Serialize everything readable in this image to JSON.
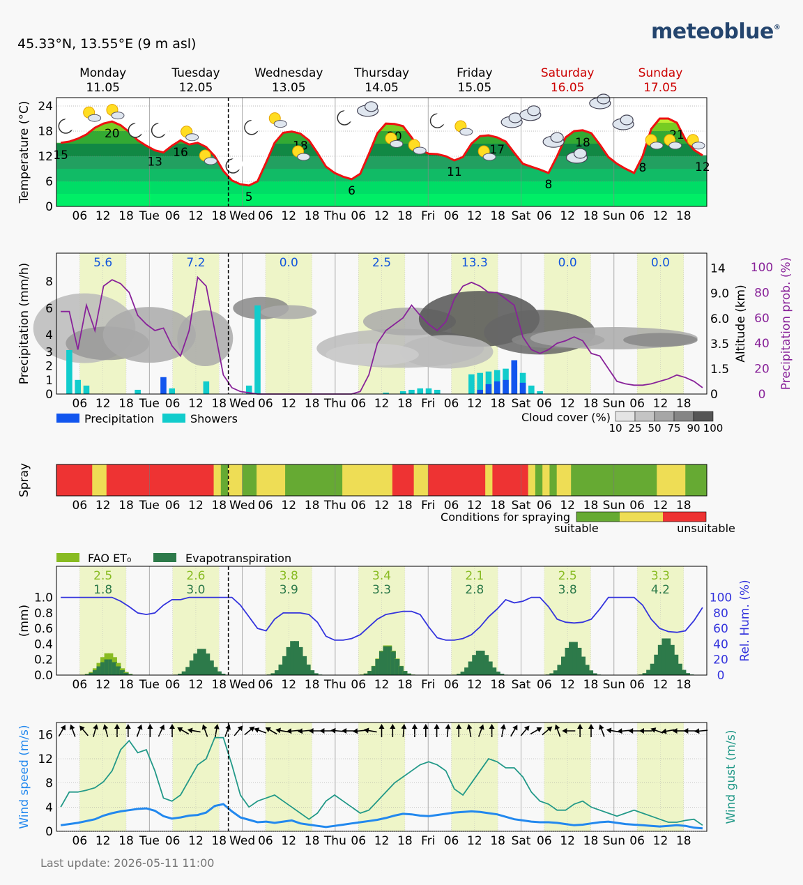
{
  "brand": "meteoblue",
  "location": "45.33°N, 13.55°E (9 m asl)",
  "last_update": "Last update: 2026-05-11 11:00",
  "days": [
    {
      "name": "Monday",
      "date": "11.05",
      "short": "",
      "weekend": false
    },
    {
      "name": "Tuesday",
      "date": "12.05",
      "short": "Tue",
      "weekend": false
    },
    {
      "name": "Wednesday",
      "date": "13.05",
      "short": "Wed",
      "weekend": false
    },
    {
      "name": "Thursday",
      "date": "14.05",
      "short": "Thu",
      "weekend": false
    },
    {
      "name": "Friday",
      "date": "15.05",
      "short": "Fri",
      "weekend": false
    },
    {
      "name": "Saturday",
      "date": "16.05",
      "short": "Sat",
      "weekend": true
    },
    {
      "name": "Sunday",
      "date": "17.05",
      "short": "Sun",
      "weekend": true
    }
  ],
  "hour_ticks": [
    "06",
    "12",
    "18"
  ],
  "colors": {
    "weekend": "#cc0000",
    "temp_line": "#ee1111",
    "precip": "#1155ee",
    "showers": "#11cccc",
    "prob": "#882299",
    "suitable": "#66aa33",
    "marginal": "#eedd55",
    "unsuitable": "#ee3333",
    "fao": "#88bb22",
    "evapo": "#2d7a4a",
    "humidity": "#3333dd",
    "wind": "#2288ee",
    "gust": "#229988"
  },
  "chart_data": [
    {
      "type": "area",
      "ylabel": "Temperature (°C)",
      "ylim": [
        0,
        26
      ],
      "yticks": [
        0,
        6,
        12,
        18,
        24
      ],
      "temperature": [
        15.2,
        15.5,
        16.2,
        17.2,
        18.8,
        19.8,
        20.3,
        19.4,
        17.8,
        15.8,
        14.5,
        13.4,
        12.9,
        14.5,
        15.8,
        14.8,
        15.2,
        14.2,
        12.0,
        8.5,
        6.2,
        5.3,
        5.0,
        6.0,
        10.5,
        15.2,
        17.6,
        17.9,
        17.4,
        15.8,
        12.8,
        9.5,
        8.0,
        7.1,
        6.5,
        7.8,
        12.5,
        17.5,
        19.8,
        19.7,
        19.2,
        16.5,
        13.5,
        12.6,
        12.5,
        12.0,
        11.0,
        11.8,
        15.0,
        16.8,
        17.0,
        16.5,
        15.5,
        12.8,
        10.2,
        9.5,
        8.8,
        8.0,
        12.0,
        16.5,
        18.0,
        18.2,
        17.5,
        14.8,
        11.8,
        10.2,
        9.0,
        8.0,
        12.0,
        18.5,
        21.0,
        21.0,
        20.0,
        16.0,
        13.5,
        12.2
      ],
      "minmax_labels": [
        {
          "i": 0,
          "v": "15"
        },
        {
          "i": 6,
          "v": "20"
        },
        {
          "i": 11,
          "v": "13"
        },
        {
          "i": 14,
          "v": "16"
        },
        {
          "i": 22,
          "v": "5"
        },
        {
          "i": 28,
          "v": "18"
        },
        {
          "i": 34,
          "v": "6"
        },
        {
          "i": 39,
          "v": "20"
        },
        {
          "i": 46,
          "v": "11"
        },
        {
          "i": 51,
          "v": "17"
        },
        {
          "i": 57,
          "v": "8"
        },
        {
          "i": 61,
          "v": "18"
        },
        {
          "i": 68,
          "v": "8"
        },
        {
          "i": 72,
          "v": "21"
        },
        {
          "i": 75,
          "v": "12"
        }
      ]
    },
    {
      "type": "bar",
      "ylabel": "Precipitation (mm/h)",
      "ylim": [
        0,
        9
      ],
      "yticks": [
        0,
        1,
        2,
        3,
        4,
        6,
        8
      ],
      "y2label": "Altitude (km)",
      "y2ticks": [
        "0",
        "1.5",
        "3.5",
        "6.0",
        "9.0",
        "14"
      ],
      "y3label": "Precipitation prob. (%)",
      "y3ticks": [
        0,
        20,
        40,
        60,
        80,
        100
      ],
      "daily_totals": [
        "5.6",
        "7.2",
        "0.0",
        "2.5",
        "13.3",
        "0.0",
        "0.0"
      ],
      "precipitation_probability": [
        65,
        65,
        35,
        70,
        50,
        85,
        90,
        87,
        80,
        62,
        55,
        50,
        52,
        38,
        30,
        50,
        92,
        85,
        50,
        15,
        5,
        2,
        1,
        0,
        0,
        0,
        0,
        0,
        0,
        0,
        0,
        0,
        0,
        0,
        0,
        2,
        15,
        40,
        50,
        55,
        60,
        70,
        62,
        55,
        50,
        57,
        75,
        85,
        88,
        85,
        80,
        80,
        75,
        70,
        45,
        35,
        32,
        35,
        40,
        42,
        45,
        42,
        32,
        30,
        20,
        10,
        8,
        7,
        7,
        8,
        10,
        12,
        15,
        13,
        10,
        5
      ],
      "precip_bars": [
        {
          "h": 12,
          "v": 1.2
        },
        {
          "h": 49,
          "v": 0.3
        },
        {
          "h": 50,
          "v": 0.7
        },
        {
          "h": 51,
          "v": 0.9
        },
        {
          "h": 52,
          "v": 1.0
        },
        {
          "h": 53,
          "v": 2.4
        },
        {
          "h": 54,
          "v": 0.8
        }
      ],
      "shower_bars": [
        {
          "h": 1,
          "v": 3.1
        },
        {
          "h": 2,
          "v": 1.0
        },
        {
          "h": 3,
          "v": 0.6
        },
        {
          "h": 9,
          "v": 0.3
        },
        {
          "h": 13,
          "v": 0.4
        },
        {
          "h": 17,
          "v": 0.9
        },
        {
          "h": 22,
          "v": 0.6
        },
        {
          "h": 23,
          "v": 6.2
        },
        {
          "h": 38,
          "v": 0.1
        },
        {
          "h": 40,
          "v": 0.2
        },
        {
          "h": 41,
          "v": 0.3
        },
        {
          "h": 42,
          "v": 0.4
        },
        {
          "h": 43,
          "v": 0.4
        },
        {
          "h": 44,
          "v": 0.3
        },
        {
          "h": 48,
          "v": 1.4
        },
        {
          "h": 49,
          "v": 1.5
        },
        {
          "h": 50,
          "v": 1.6
        },
        {
          "h": 51,
          "v": 1.7
        },
        {
          "h": 52,
          "v": 1.8
        },
        {
          "h": 53,
          "v": 2.0
        },
        {
          "h": 54,
          "v": 1.5
        },
        {
          "h": 55,
          "v": 0.6
        },
        {
          "h": 56,
          "v": 0.2
        }
      ],
      "legend": [
        "Precipitation",
        "Showers"
      ],
      "cloud_legend_title": "Cloud cover (%)",
      "cloud_legend_values": [
        "10",
        "25",
        "50",
        "75",
        "90",
        "100"
      ]
    },
    {
      "type": "heatmap",
      "ylabel": "Spray",
      "segments": [
        [
          "u",
          5
        ],
        [
          "m",
          2
        ],
        [
          "u",
          15
        ],
        [
          "m",
          1
        ],
        [
          "s",
          1
        ],
        [
          "m",
          1
        ],
        [
          "m",
          1
        ],
        [
          "s",
          2
        ],
        [
          "m",
          4
        ],
        [
          "s",
          7
        ],
        [
          "s",
          1
        ],
        [
          "m",
          7
        ],
        [
          "u",
          3
        ],
        [
          "m",
          2
        ],
        [
          "u",
          8
        ],
        [
          "m",
          1
        ],
        [
          "u",
          5
        ],
        [
          "m",
          1
        ],
        [
          "s",
          1
        ],
        [
          "m",
          1
        ],
        [
          "s",
          1
        ],
        [
          "m",
          2
        ],
        [
          "s",
          12
        ],
        [
          "m",
          4
        ],
        [
          "s",
          3
        ]
      ],
      "legend_title": "Conditions for spraying",
      "legend_suitable": "suitable",
      "legend_unsuitable": "unsuitable"
    },
    {
      "type": "bar",
      "ylabel": "(mm)",
      "ylim": [
        0,
        1.4
      ],
      "yticks": [
        "0.0",
        "0.2",
        "0.4",
        "0.6",
        "0.8",
        "1.0"
      ],
      "y2label": "Rel. Hum. (%)",
      "y2ticks": [
        0,
        20,
        40,
        60,
        80,
        100
      ],
      "legend": [
        "FAO ET₀",
        "Evapotranspiration"
      ],
      "fao_daily": [
        "2.5",
        "2.6",
        "3.8",
        "3.4",
        "2.1",
        "2.5",
        "3.3"
      ],
      "evapo_daily": [
        "1.8",
        "3.0",
        "3.9",
        "3.3",
        "2.8",
        "3.8",
        "4.2"
      ],
      "humidity": [
        100,
        100,
        100,
        100,
        100,
        100,
        100,
        95,
        88,
        80,
        78,
        80,
        90,
        97,
        97,
        100,
        100,
        100,
        100,
        100,
        100,
        90,
        75,
        60,
        57,
        72,
        80,
        80,
        80,
        78,
        68,
        50,
        45,
        45,
        47,
        52,
        62,
        72,
        78,
        80,
        82,
        82,
        78,
        62,
        48,
        45,
        45,
        47,
        52,
        62,
        75,
        85,
        97,
        93,
        95,
        100,
        100,
        88,
        72,
        68,
        67,
        68,
        72,
        85,
        100,
        100,
        100,
        100,
        90,
        72,
        60,
        56,
        55,
        57,
        70,
        87
      ]
    },
    {
      "type": "line",
      "ylabel": "Wind speed (m/s)",
      "y2label": "Wind gust (m/s)",
      "ylim": [
        0,
        18
      ],
      "yticks": [
        0,
        4,
        8,
        12,
        16
      ],
      "wind_speed": [
        1.0,
        1.2,
        1.4,
        1.7,
        2.0,
        2.6,
        3.0,
        3.3,
        3.5,
        3.7,
        3.8,
        3.4,
        2.5,
        2.1,
        2.3,
        2.6,
        2.7,
        3.1,
        4.2,
        4.5,
        3.3,
        2.3,
        1.9,
        1.5,
        1.6,
        1.4,
        1.6,
        1.8,
        1.3,
        1.1,
        0.9,
        0.7,
        0.9,
        1.1,
        1.3,
        1.5,
        1.7,
        1.9,
        2.2,
        2.6,
        2.9,
        2.8,
        2.6,
        2.5,
        2.7,
        2.9,
        3.1,
        3.2,
        3.3,
        3.2,
        3.0,
        2.8,
        2.4,
        2.0,
        1.8,
        1.6,
        1.5,
        1.5,
        1.4,
        1.2,
        1.0,
        1.1,
        1.3,
        1.5,
        1.6,
        1.4,
        1.2,
        1.1,
        1.0,
        0.9,
        0.8,
        0.9,
        1.0,
        0.9,
        0.6,
        0.5
      ],
      "wind_gust": [
        4.0,
        6.5,
        6.5,
        6.8,
        7.2,
        8.2,
        10.0,
        13.5,
        15.0,
        13.0,
        13.5,
        10.0,
        5.5,
        5.0,
        6.0,
        8.5,
        11.0,
        12.0,
        15.5,
        15.5,
        11.0,
        6.0,
        4.0,
        5.0,
        5.5,
        6.0,
        5.0,
        4.0,
        3.0,
        2.0,
        3.0,
        5.0,
        6.0,
        5.0,
        4.0,
        3.0,
        3.5,
        5.0,
        6.5,
        8.0,
        9.0,
        10.0,
        11.0,
        11.5,
        11.0,
        10.0,
        7.0,
        6.0,
        8.0,
        10.0,
        12.0,
        11.5,
        10.5,
        10.5,
        9.0,
        6.5,
        5.0,
        4.5,
        3.5,
        3.5,
        4.5,
        5.0,
        4.0,
        3.5,
        3.0,
        2.5,
        3.0,
        3.5,
        3.0,
        2.5,
        2.0,
        1.5,
        1.5,
        1.8,
        2.0,
        1.0
      ]
    }
  ]
}
